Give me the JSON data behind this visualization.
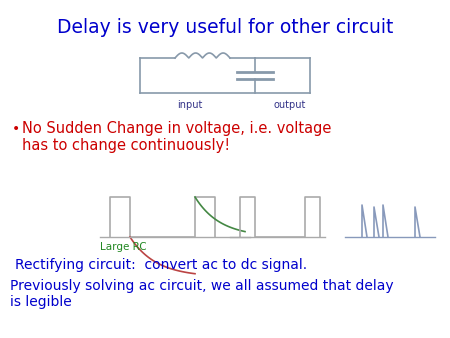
{
  "title": "Delay is very useful for other circuit",
  "title_color": "#0000CC",
  "title_fontsize": 13.5,
  "bg_color": "#FFFFFF",
  "bullet_text": "No Sudden Change in voltage, i.e. voltage\nhas to change continuously!",
  "bullet_color": "#CC0000",
  "bullet_fontsize": 10.5,
  "large_rc_label": "Large RC",
  "large_rc_color": "#228822",
  "rectifying_text": "Rectifying circuit:  convert ac to dc signal.",
  "rectifying_color": "#0000CC",
  "rectifying_fontsize": 10,
  "previously_text": "Previously solving ac circuit, we all assumed that delay\nis legible",
  "previously_color": "#0000CC",
  "previously_fontsize": 10,
  "circuit_color": "#8899AA",
  "input_label": "input",
  "output_label": "output",
  "label_color": "#333388",
  "label_fontsize": 7,
  "sq_color": "#AAAAAA",
  "rc_rise_color": "#BB4444",
  "rc_fall_color": "#448844",
  "spike_color": "#8899BB"
}
